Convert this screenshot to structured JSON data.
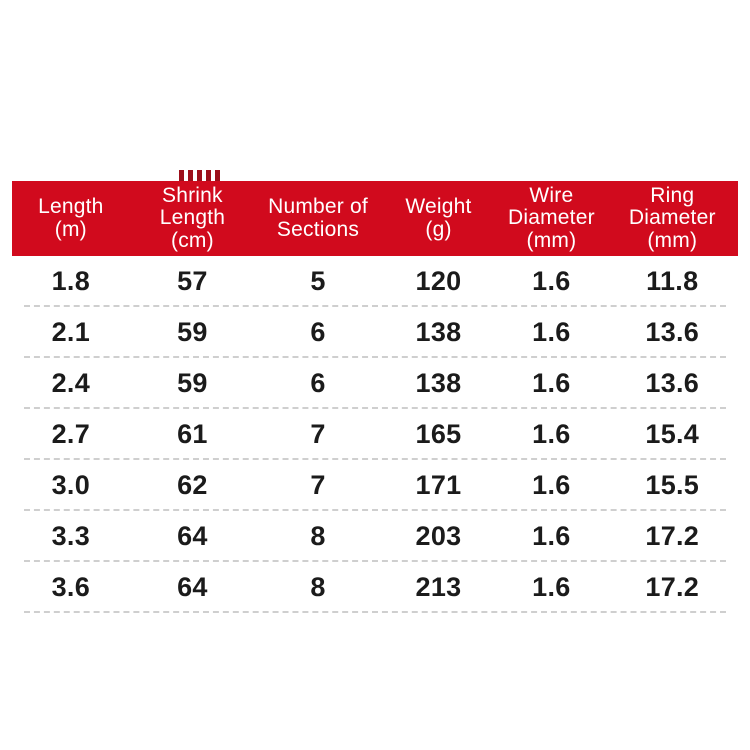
{
  "page": {
    "background": "#ffffff"
  },
  "colors": {
    "header_bg": "#d10a1d",
    "header_text": "#ffffff",
    "cell_text": "#1b1b1b",
    "row_divider": "#cfcfcf",
    "clipped_fragment": "#9c0f1a"
  },
  "header": {
    "cells": [
      {
        "lines": [
          "Length",
          "(m)"
        ]
      },
      {
        "lines": [
          "Shrink",
          "Length",
          "(cm)"
        ]
      },
      {
        "lines": [
          "Number of",
          "Sections"
        ]
      },
      {
        "lines": [
          "Weight",
          "(g)"
        ]
      },
      {
        "lines": [
          "Wire",
          "Diameter",
          "(mm)"
        ]
      },
      {
        "lines": [
          "Ring",
          "Diameter",
          "(mm)"
        ]
      }
    ]
  },
  "chart_data": {
    "type": "table",
    "title": "",
    "columns": [
      "Length (m)",
      "Shrink Length (cm)",
      "Number of Sections",
      "Weight (g)",
      "Wire Diameter (mm)",
      "Ring Diameter (mm)"
    ],
    "rows": [
      [
        "1.8",
        "57",
        "5",
        "120",
        "1.6",
        "11.8"
      ],
      [
        "2.1",
        "59",
        "6",
        "138",
        "1.6",
        "13.6"
      ],
      [
        "2.4",
        "59",
        "6",
        "138",
        "1.6",
        "13.6"
      ],
      [
        "2.7",
        "61",
        "7",
        "165",
        "1.6",
        "15.4"
      ],
      [
        "3.0",
        "62",
        "7",
        "171",
        "1.6",
        "15.5"
      ],
      [
        "3.3",
        "64",
        "8",
        "203",
        "1.6",
        "17.2"
      ],
      [
        "3.6",
        "64",
        "8",
        "213",
        "1.6",
        "17.2"
      ]
    ]
  }
}
